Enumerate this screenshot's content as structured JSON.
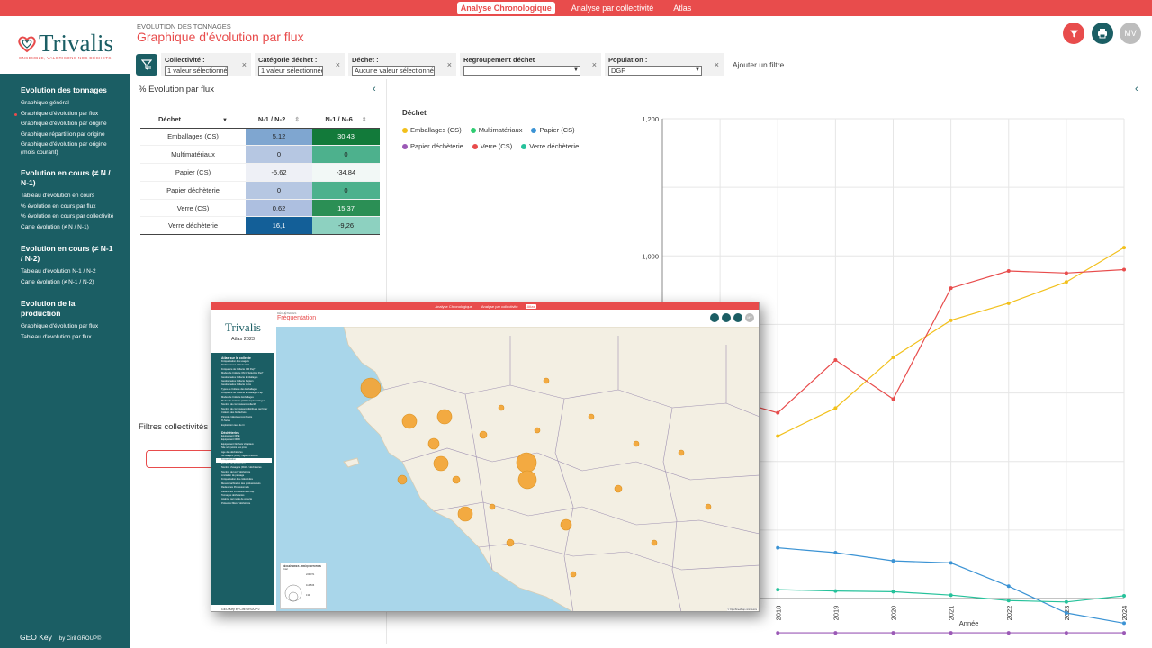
{
  "colors": {
    "brand_red": "#e84c4c",
    "brand_teal": "#1b5e64"
  },
  "topnav": {
    "items": [
      {
        "label": "Analyse Chronologique",
        "active": true
      },
      {
        "label": "Analyse par collectivité",
        "active": false
      },
      {
        "label": "Atlas",
        "active": false
      }
    ]
  },
  "logo": {
    "name": "Trivalis",
    "tagline": "ENSEMBLE, VALORISONS NOS DÉCHETS"
  },
  "sidebar": {
    "sections": [
      {
        "title": "Evolution des tonnages",
        "items": [
          "Graphique général",
          "Graphique d'évolution par flux",
          "Graphique d'évolution par origine",
          "Graphique répartition par origine",
          "Graphique d'évolution par origine (mois courant)"
        ]
      },
      {
        "title": "Evolution en cours (≠ N / N-1)",
        "items": [
          "Tableau d'évolution en cours",
          "% évolution en cours par flux",
          "% évolution en cours par collectivité",
          "Carte évolution (≠ N / N-1)"
        ]
      },
      {
        "title": "Evolution en cours (≠ N-1 / N-2)",
        "items": [
          "Tableau d'évolution N-1 / N-2",
          "Carte évolution (≠ N-1 / N-2)"
        ]
      },
      {
        "title": "Evolution de la production",
        "items": [
          "Graphique d'évolution par flux",
          "Tableau d'évolution par flux"
        ]
      }
    ],
    "active_item": "Graphique d'évolution par flux",
    "footer_main": "GEO Key",
    "footer_sub": "by Ciril GROUP©"
  },
  "header": {
    "supertitle": "EVOLUTION DES TONNAGES",
    "title": "Graphique d'évolution par flux"
  },
  "actions": {
    "filter_icon": "filter-icon",
    "print_icon": "print-icon",
    "avatar": "MV"
  },
  "filters": [
    {
      "label": "Collectivité :",
      "value": "1 valeur sélectionnée"
    },
    {
      "label": "Catégorie déchet :",
      "value": "1 valeur sélectionnée"
    },
    {
      "label": "Déchet :",
      "value": "Aucune valeur sélectionnée"
    },
    {
      "label": "Regroupement déchet",
      "value": ""
    },
    {
      "label": "Population :",
      "value": "DGF"
    }
  ],
  "add_filter": "Ajouter un filtre",
  "table_panel": {
    "title": "% Evolution par flux",
    "headers": [
      "Déchet",
      "N-1 / N-2",
      "N-1 / N-6"
    ],
    "rows": [
      {
        "label": "Emballages (CS)",
        "v1": "5,12",
        "v2": "30,43",
        "c1": "#7fa6d0",
        "c2": "#127a3a",
        "t1": "#222",
        "t2": "#fff"
      },
      {
        "label": "Multimatériaux",
        "v1": "0",
        "v2": "0",
        "c1": "#b6c7e2",
        "c2": "#4db18d",
        "t1": "#222",
        "t2": "#222"
      },
      {
        "label": "Papier (CS)",
        "v1": "-5,62",
        "v2": "-34,84",
        "c1": "#eef0f6",
        "c2": "#f2f8f6",
        "t1": "#222",
        "t2": "#222"
      },
      {
        "label": "Papier déchèterie",
        "v1": "0",
        "v2": "0",
        "c1": "#b6c7e2",
        "c2": "#4db18d",
        "t1": "#222",
        "t2": "#222"
      },
      {
        "label": "Verre (CS)",
        "v1": "0,62",
        "v2": "15,37",
        "c1": "#adbfe0",
        "c2": "#2b8f55",
        "t1": "#222",
        "t2": "#fff"
      },
      {
        "label": "Verre déchèterie",
        "v1": "16,1",
        "v2": "-9,26",
        "c1": "#135f98",
        "c2": "#8dd1c0",
        "t1": "#fff",
        "t2": "#222"
      }
    ]
  },
  "collectivity_filters": {
    "title": "Filtres collectivités"
  },
  "legend": {
    "title": "Déchet"
  },
  "chart_data": {
    "type": "line",
    "x": [
      2018,
      2019,
      2020,
      2021,
      2022,
      2023,
      2024
    ],
    "y_ticks": [
      "800",
      "1,000",
      "1,200"
    ],
    "xlabel": "Année",
    "ylim": [
      500,
      1200
    ],
    "series": [
      {
        "name": "Emballages (CS)",
        "color": "#f2c01b",
        "values": [
          737,
          778,
          852,
          906,
          931,
          962,
          1012
        ]
      },
      {
        "name": "Multimatériaux",
        "color": "#2ecc71",
        "values": [
          null,
          null,
          null,
          null,
          null,
          null,
          null
        ]
      },
      {
        "name": "Papier (CS)",
        "color": "#3b93d4",
        "values": [
          574,
          567,
          555,
          552,
          518,
          479,
          464
        ]
      },
      {
        "name": "Papier déchèterie",
        "color": "#9b59b6",
        "values": [
          450,
          450,
          450,
          450,
          450,
          450,
          450
        ]
      },
      {
        "name": "Verre (CS)",
        "color": "#e84c4c",
        "values": [
          771,
          848,
          791,
          953,
          978,
          975,
          980
        ]
      },
      {
        "name": "Verre déchèterie",
        "color": "#26c29b",
        "values": [
          513,
          511,
          510,
          505,
          497,
          495,
          504
        ]
      }
    ],
    "visible_x_from": 2018,
    "partial_points": {
      "Verre (CS)": [
        [
          2016,
          902
        ],
        [
          2016.5,
          905
        ],
        [
          2017,
          795
        ]
      ]
    }
  },
  "overlay": {
    "tabs": [
      "Analyse Chronologique",
      "Analyse par collectivité",
      "Atlas"
    ],
    "logo": "Trivalis",
    "subtitle": "Atlas 2023",
    "section1": "Atlas sur la collecte",
    "items1": [
      "Fréquentation des usagers",
      "Performances collecte OM",
      "Fréquence de Collecte OM Pap*",
      "Modes de Collecte OM & Sélective Pap*",
      "Gestionnaires Collecte Emballages",
      "Gestionnaires Collecte Papiers",
      "Gestionnaires Collecte Verre",
      "Types de Collecte des Emballages",
      "Fréquence de Collecte Emballages Pap*",
      "Modes de Collecte Emballages",
      "Modes de Collecte (Véhicule) Emballages",
      "Nombre de composteurs collectifs",
      "Nombre de composteurs distribués par foyer",
      "Collecte des biodéchets",
      "Période collecte encombrants",
      "% Suivis",
      "Exploitation taux de tri"
    ],
    "section2": "Déchèteries",
    "items2": [
      "Équipement DITE",
      "Équipement DIDD",
      "Équipement Déchets Végétaux",
      "Site n/a (accès aux pros)",
      "Âge des déchèteries",
      "Nb usagers (DGF) / agent d'accueil",
      "Fréquentation",
      "Nombre de déchèteries",
      "Nombre d'usagers (DGF) / déchèteries",
      "Nombre de km² / déchèterie",
      "Limitation de passage",
      "Fréquentation des collectivités",
      "Mesure tarification des professionnels",
      "Redevance Professionnels",
      "Redevance Professionnels Pap*",
      "Tonnages déchèteries",
      "Analyse par mode de collecte",
      "Présence filière / déchèterie"
    ],
    "selected": "Fréquentation",
    "footer": "GEO Key by Ciril GROUP©",
    "header_super": "DÉCHÈTERIES",
    "header_title": "Fréquentation",
    "avatar": "MV",
    "map_legend_title": "DÉCHÈTERIES - FRÉQUENTATION",
    "map_legend_sub": "Total",
    "map_legend_values": [
      "229 071",
      "114 536",
      "134"
    ],
    "map_attribution": "© OpenStreetMap contributors"
  }
}
